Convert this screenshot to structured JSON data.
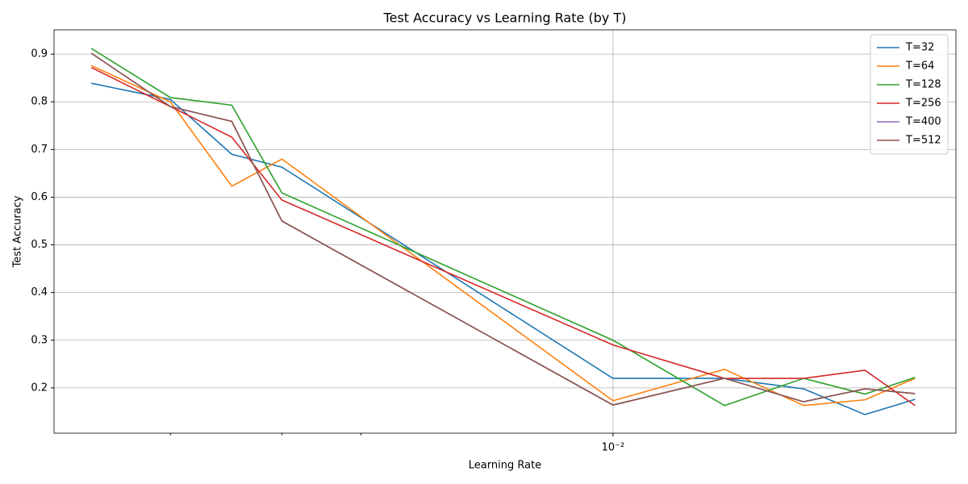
{
  "chart_data": {
    "type": "line",
    "title": "Test Accuracy vs Learning Rate (by T)",
    "xlabel": "Learning Rate",
    "ylabel": "Test Accuracy",
    "x": [
      0.0015,
      0.002,
      0.0025,
      0.003,
      0.01,
      0.015,
      0.02,
      0.025,
      0.03
    ],
    "series": [
      {
        "name": "T=32",
        "color": "#1f77b4",
        "values": [
          0.839,
          0.805,
          0.69,
          0.663,
          0.22,
          0.22,
          0.198,
          0.144,
          0.176
        ]
      },
      {
        "name": "T=64",
        "color": "#ff7f0e",
        "values": [
          0.876,
          0.8,
          0.623,
          0.68,
          0.173,
          0.239,
          0.163,
          0.175,
          0.22
        ]
      },
      {
        "name": "T=128",
        "color": "#2ca02c",
        "values": [
          0.912,
          0.809,
          0.793,
          0.609,
          0.3,
          0.163,
          0.22,
          0.187,
          0.222
        ]
      },
      {
        "name": "T=256",
        "color": "#d62728",
        "values": [
          0.872,
          0.79,
          0.726,
          0.594,
          0.29,
          0.22,
          0.22,
          0.237,
          0.163
        ]
      },
      {
        "name": "T=400",
        "color": "#9467bd",
        "values": [
          0.902,
          0.79,
          0.759,
          0.55,
          0.164,
          0.22,
          0.171,
          0.198,
          0.188
        ]
      },
      {
        "name": "T=512",
        "color": "#8c564b",
        "values": [
          0.902,
          0.79,
          0.759,
          0.55,
          0.164,
          0.22,
          0.171,
          0.198,
          0.188
        ]
      }
    ],
    "xscale": "log",
    "xlim": [
      0.00131,
      0.0348
    ],
    "ylim": [
      0.105,
      0.951
    ],
    "xticks": [
      {
        "value": 0.01,
        "label": "10⁻²"
      }
    ],
    "xminorticks": [
      0.002,
      0.003,
      0.004
    ],
    "yticks": [
      0.2,
      0.3,
      0.4,
      0.5,
      0.6,
      0.7,
      0.8,
      0.9
    ],
    "grid": true,
    "legend": "upper right"
  }
}
